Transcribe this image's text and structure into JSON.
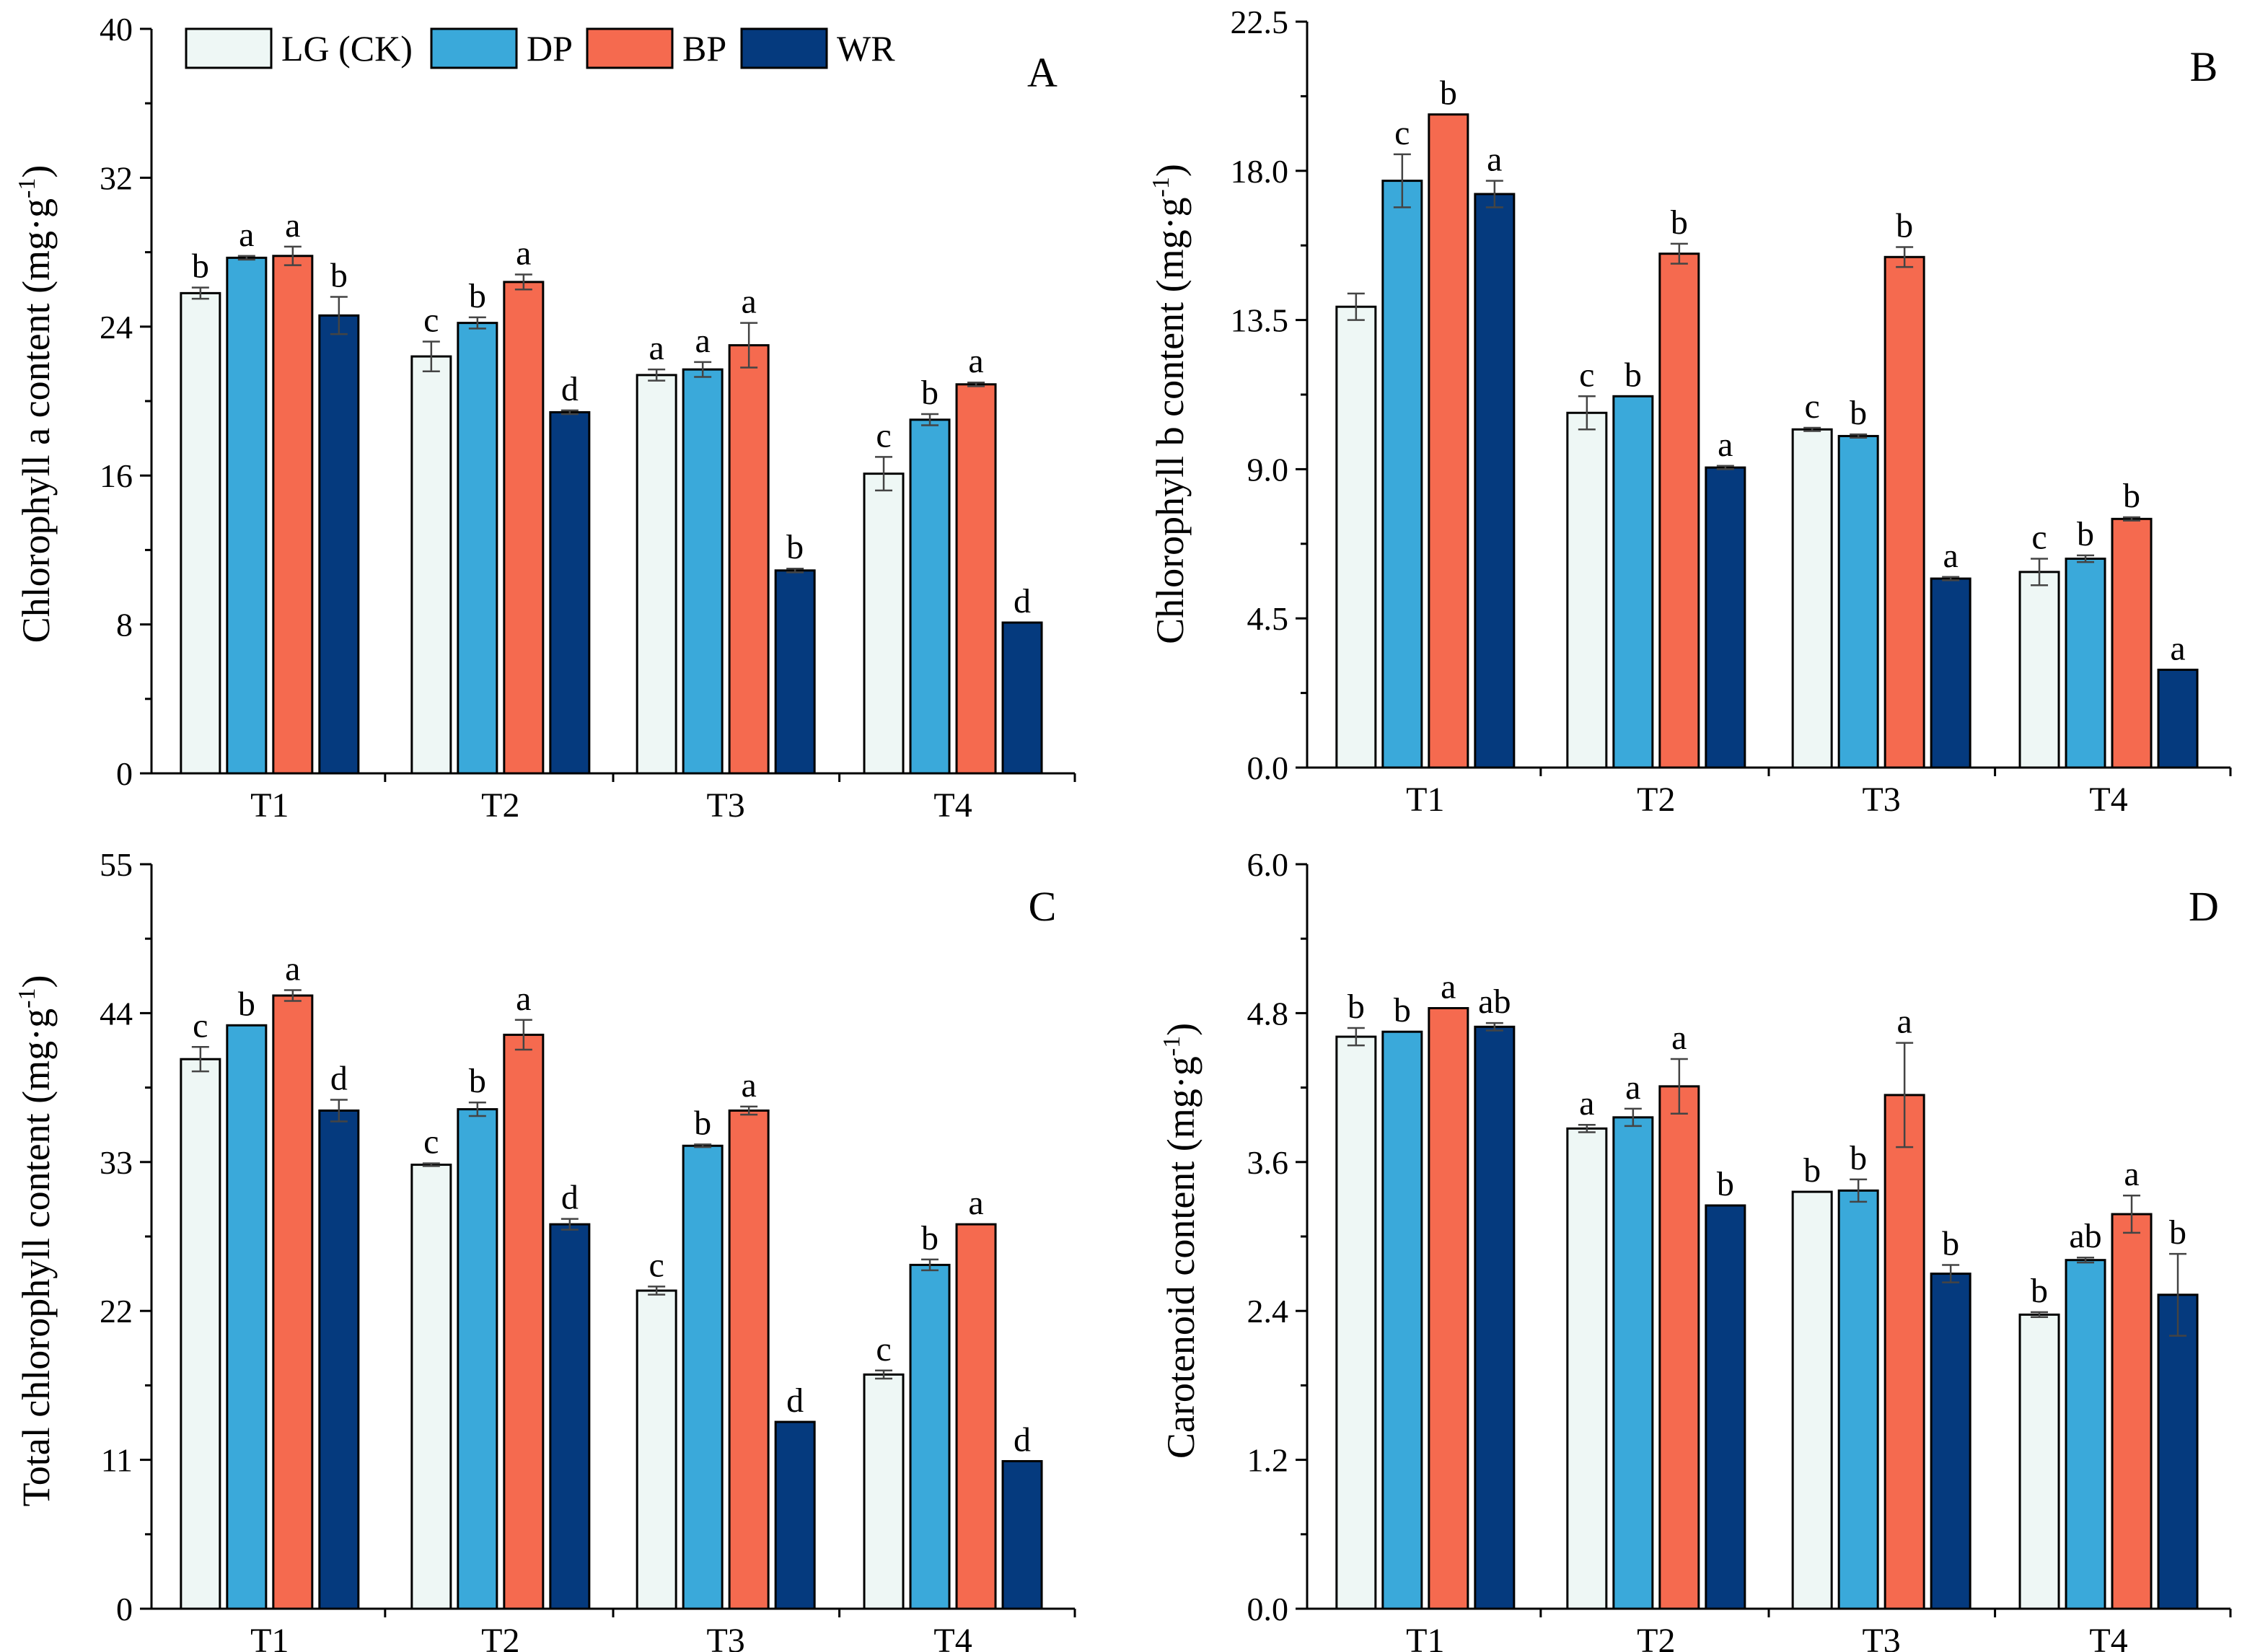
{
  "legend": [
    {
      "name": "LG (CK)",
      "color": "#eef7f5"
    },
    {
      "name": "DP",
      "color": "#3aa9da"
    },
    {
      "name": "BP",
      "color": "#f56a4f"
    },
    {
      "name": "WR",
      "color": "#053a7e"
    }
  ],
  "chart_data": [
    {
      "type": "bar",
      "panel": "A",
      "ylabel_pre": "Chlorophyll a content (mg·g",
      "ylabel_sup": "-1",
      "ylabel_post": ")",
      "categories": [
        "T1",
        "T2",
        "T3",
        "T4"
      ],
      "ylim": [
        0,
        40
      ],
      "ytick_labels": [
        "0",
        "8",
        "16",
        "24",
        "32",
        "40"
      ],
      "series": [
        {
          "name": "LG (CK)",
          "values": [
            25.8,
            22.4,
            21.4,
            16.1
          ],
          "errors": [
            0.3,
            0.8,
            0.3,
            0.9
          ],
          "letters": [
            "b",
            "c",
            "a",
            "c"
          ]
        },
        {
          "name": "DP",
          "values": [
            27.7,
            24.2,
            21.7,
            19.0
          ],
          "errors": [
            0.1,
            0.3,
            0.4,
            0.3
          ],
          "letters": [
            "a",
            "b",
            "a",
            "b"
          ]
        },
        {
          "name": "BP",
          "values": [
            27.8,
            26.4,
            23.0,
            20.9
          ],
          "errors": [
            0.5,
            0.4,
            1.2,
            0.1
          ],
          "letters": [
            "a",
            "a",
            "a",
            "a"
          ]
        },
        {
          "name": "WR",
          "values": [
            24.6,
            19.4,
            10.9,
            8.1
          ],
          "errors": [
            1.0,
            0.1,
            0.1,
            0.0
          ],
          "letters": [
            "b",
            "d",
            "b",
            "d"
          ]
        }
      ]
    },
    {
      "type": "bar",
      "panel": "B",
      "ylabel_pre": "Chlorophyll b content (mg·g",
      "ylabel_sup": "-1",
      "ylabel_post": ")",
      "categories": [
        "T1",
        "T2",
        "T3",
        "T4"
      ],
      "ylim": [
        0,
        22.5
      ],
      "ytick_labels": [
        "0.0",
        "4.5",
        "9.0",
        "13.5",
        "18.0",
        "22.5"
      ],
      "series": [
        {
          "name": "LG (CK)",
          "values": [
            13.9,
            10.7,
            10.2,
            5.9
          ],
          "errors": [
            0.4,
            0.5,
            0.05,
            0.4
          ],
          "letters": [
            "",
            "c",
            "c",
            "c"
          ]
        },
        {
          "name": "DP",
          "values": [
            17.7,
            11.2,
            10.0,
            6.3
          ],
          "errors": [
            0.8,
            0.0,
            0.05,
            0.1
          ],
          "letters": [
            "c",
            "b",
            "b",
            "b"
          ]
        },
        {
          "name": "BP",
          "values": [
            19.7,
            15.5,
            15.4,
            7.5
          ],
          "errors": [
            0.0,
            0.3,
            0.3,
            0.05
          ],
          "letters": [
            "b",
            "b",
            "b",
            "b"
          ]
        },
        {
          "name": "WR",
          "values": [
            17.3,
            9.05,
            5.7,
            2.95
          ],
          "errors": [
            0.4,
            0.05,
            0.05,
            0.0
          ],
          "letters": [
            "a",
            "a",
            "a",
            "a"
          ]
        }
      ]
    },
    {
      "type": "bar",
      "panel": "C",
      "ylabel_pre": "Total chlorophyll content (mg·g",
      "ylabel_sup": "-1",
      "ylabel_post": ")",
      "categories": [
        "T1",
        "T2",
        "T3",
        "T4"
      ],
      "ylim": [
        0,
        55
      ],
      "ytick_labels": [
        "0",
        "11",
        "22",
        "33",
        "44",
        "55"
      ],
      "series": [
        {
          "name": "LG (CK)",
          "values": [
            40.6,
            32.8,
            23.5,
            17.3
          ],
          "errors": [
            0.9,
            0.1,
            0.3,
            0.3
          ],
          "letters": [
            "c",
            "c",
            "c",
            "c"
          ]
        },
        {
          "name": "DP",
          "values": [
            43.1,
            36.9,
            34.2,
            25.4
          ],
          "errors": [
            0.0,
            0.5,
            0.1,
            0.4
          ],
          "letters": [
            "b",
            "b",
            "b",
            "b"
          ]
        },
        {
          "name": "BP",
          "values": [
            45.3,
            42.4,
            36.8,
            28.4
          ],
          "errors": [
            0.4,
            1.1,
            0.3,
            0.0
          ],
          "letters": [
            "a",
            "a",
            "a",
            "a"
          ]
        },
        {
          "name": "WR",
          "values": [
            36.8,
            28.4,
            13.8,
            10.9
          ],
          "errors": [
            0.8,
            0.4,
            0.0,
            0.0
          ],
          "letters": [
            "d",
            "d",
            "d",
            "d"
          ]
        }
      ]
    },
    {
      "type": "bar",
      "panel": "D",
      "ylabel_pre": "Carotenoid content (mg·g",
      "ylabel_sup": "-1",
      "ylabel_post": ")",
      "categories": [
        "T1",
        "T2",
        "T3",
        "T4"
      ],
      "ylim": [
        0,
        6.0
      ],
      "ytick_labels": [
        "0.0",
        "1.2",
        "2.4",
        "3.6",
        "4.8",
        "6.0"
      ],
      "series": [
        {
          "name": "LG (CK)",
          "values": [
            4.61,
            3.87,
            3.36,
            2.37
          ],
          "errors": [
            0.07,
            0.03,
            0.0,
            0.02
          ],
          "letters": [
            "b",
            "a",
            "b",
            "b"
          ]
        },
        {
          "name": "DP",
          "values": [
            4.65,
            3.96,
            3.37,
            2.81
          ],
          "errors": [
            0.0,
            0.07,
            0.09,
            0.02
          ],
          "letters": [
            "b",
            "a",
            "b",
            "ab"
          ]
        },
        {
          "name": "BP",
          "values": [
            4.84,
            4.21,
            4.14,
            3.18
          ],
          "errors": [
            0.0,
            0.22,
            0.42,
            0.15
          ],
          "letters": [
            "a",
            "a",
            "a",
            "a"
          ]
        },
        {
          "name": "WR",
          "values": [
            4.69,
            3.25,
            2.7,
            2.53
          ],
          "errors": [
            0.03,
            0.0,
            0.07,
            0.33
          ],
          "letters": [
            "ab",
            "b",
            "b",
            "b"
          ]
        }
      ]
    }
  ]
}
